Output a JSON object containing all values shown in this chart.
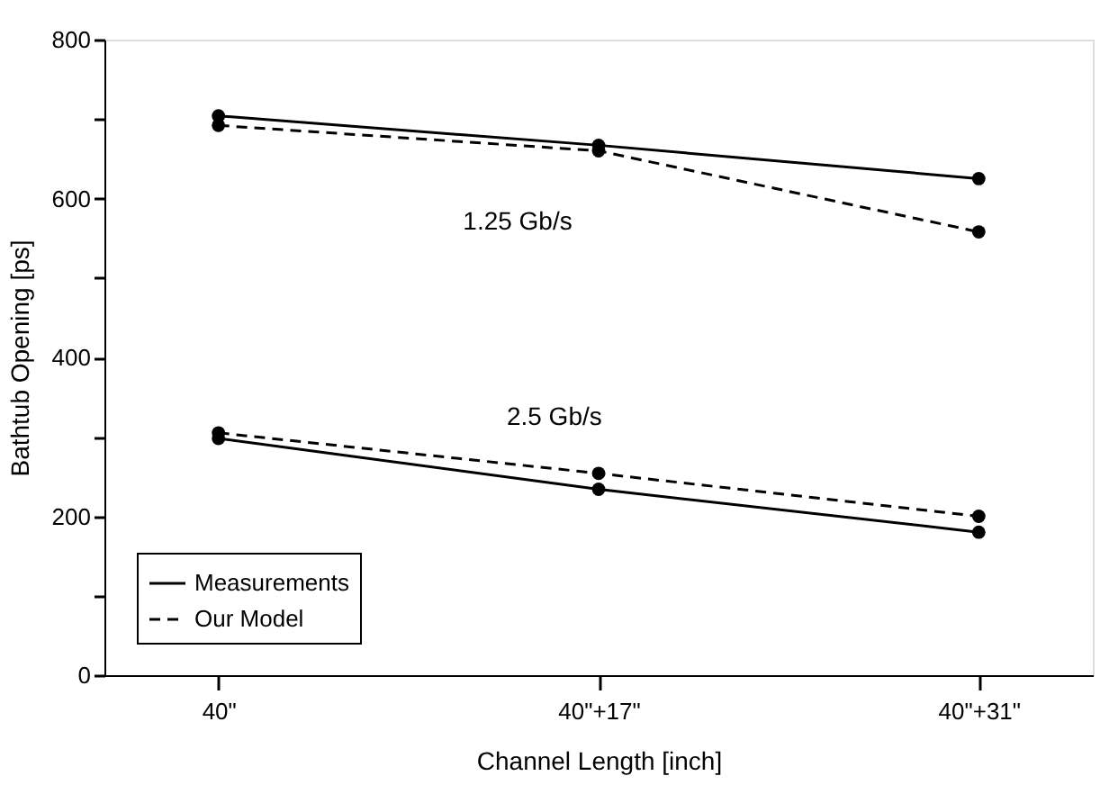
{
  "chart_data": {
    "type": "line",
    "xlabel": "Channel Length [inch]",
    "ylabel": "Bathtub Opening [ps]",
    "categories": [
      "40\"",
      "40\"+17\"",
      "40\"+31\""
    ],
    "ylim": [
      0,
      800
    ],
    "yticks": [
      0,
      {
        "value": 100,
        "label": null
      },
      200,
      {
        "value": 300,
        "label": null
      },
      400,
      {
        "value": 500,
        "label": null
      },
      600,
      {
        "value": 700,
        "label": null
      },
      800
    ],
    "grid": false,
    "legend": "bottom left",
    "marker": "circle",
    "series": [
      {
        "name": "Measurements",
        "color": "#000000",
        "line_style": "solid",
        "values": [
          704,
          667,
          625
        ]
      },
      {
        "name": "Our Model",
        "color": "#000000",
        "line_style": "dashed",
        "values": [
          692,
          660,
          558
        ]
      },
      {
        "color": "#000000",
        "line_style": "solid",
        "values": [
          298,
          234,
          180
        ]
      },
      {
        "color": "#000000",
        "line_style": "dashed",
        "values": [
          305,
          254,
          200
        ]
      }
    ],
    "annotations": [
      "1.25 Gb/s",
      "2.5 Gb/s"
    ]
  }
}
